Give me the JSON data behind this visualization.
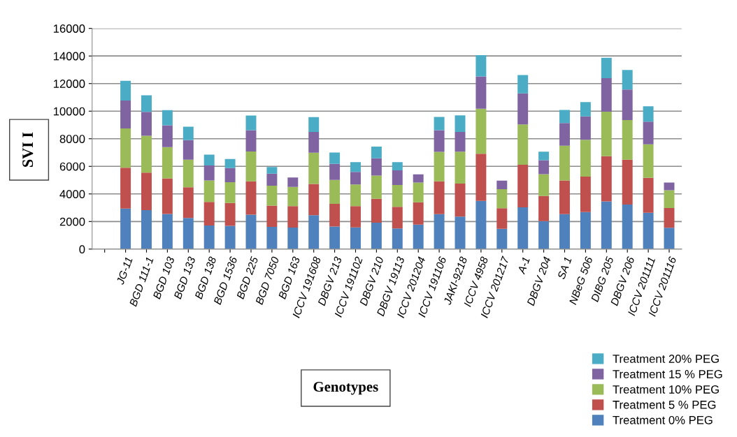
{
  "chart_data": {
    "type": "bar",
    "stacked": true,
    "xlabel": "Genotypes",
    "ylabel": "SVI I",
    "categories": [
      null,
      "JG-11",
      "BGD 111-1",
      "BGD 103",
      "BGD 133",
      "BGD 138",
      "BGD 1536",
      "BGD 225",
      "BGD 7050",
      "BGD 163",
      "ICCV 191608",
      "DBGV 213",
      "ICCV 191102",
      "DBGV 210",
      "DBGV 19113",
      "ICCV 201204",
      "ICCV 191106",
      "JAKI-9218",
      "ICCV 4958",
      "ICCV 201217",
      "A-1",
      "DBGV 204",
      "SA 1",
      "NBeG 506",
      "DIBG 205",
      "DBGV 206",
      "ICCV 201111",
      "ICCV 201116"
    ],
    "series": [
      {
        "name": "Treatment 0% PEG",
        "color": "#4f81bd",
        "values": [
          0,
          2940,
          2820,
          2550,
          2260,
          1710,
          1690,
          2500,
          1610,
          1560,
          2460,
          1640,
          1570,
          1910,
          1500,
          1780,
          2530,
          2360,
          3490,
          1470,
          3030,
          2030,
          2540,
          2690,
          3460,
          3230,
          2640,
          1550
        ]
      },
      {
        "name": "Treatment 5 % PEG",
        "color": "#c0504d",
        "values": [
          0,
          2960,
          2720,
          2580,
          2220,
          1710,
          1660,
          2410,
          1540,
          1550,
          2260,
          1640,
          1540,
          1740,
          1560,
          1610,
          2380,
          2390,
          3420,
          1500,
          3080,
          1820,
          2430,
          2570,
          3280,
          3250,
          2520,
          1430
        ]
      },
      {
        "name": "Treatment 10% PEG",
        "color": "#9bbb59",
        "values": [
          0,
          2850,
          2670,
          2260,
          2000,
          1560,
          1500,
          2170,
          1450,
          1400,
          2270,
          1740,
          1570,
          1680,
          1590,
          1430,
          2140,
          2320,
          3270,
          1370,
          2930,
          1580,
          2520,
          2670,
          3220,
          2880,
          2430,
          1290
        ]
      },
      {
        "name": "Treatment 15 % PEG",
        "color": "#8064a2",
        "values": [
          0,
          2020,
          1740,
          1590,
          1420,
          1080,
          1030,
          1540,
          870,
          680,
          1500,
          1160,
          910,
          1250,
          1060,
          600,
          1570,
          1420,
          2340,
          620,
          2250,
          1010,
          1650,
          1690,
          2430,
          2210,
          1650,
          550
        ]
      },
      {
        "name": "Treatment 20% PEG",
        "color": "#4bacc6",
        "values": [
          0,
          1430,
          1200,
          1090,
          970,
          790,
          650,
          1060,
          480,
          0,
          1080,
          820,
          720,
          850,
          600,
          0,
          960,
          1200,
          1540,
          0,
          1330,
          630,
          950,
          1040,
          1480,
          1410,
          1110,
          0
        ]
      }
    ],
    "ylim": [
      0,
      16000
    ],
    "yticks": [
      0,
      2000,
      4000,
      6000,
      8000,
      10000,
      12000,
      14000,
      16000
    ],
    "grid": "y",
    "legend": "bottom right"
  }
}
